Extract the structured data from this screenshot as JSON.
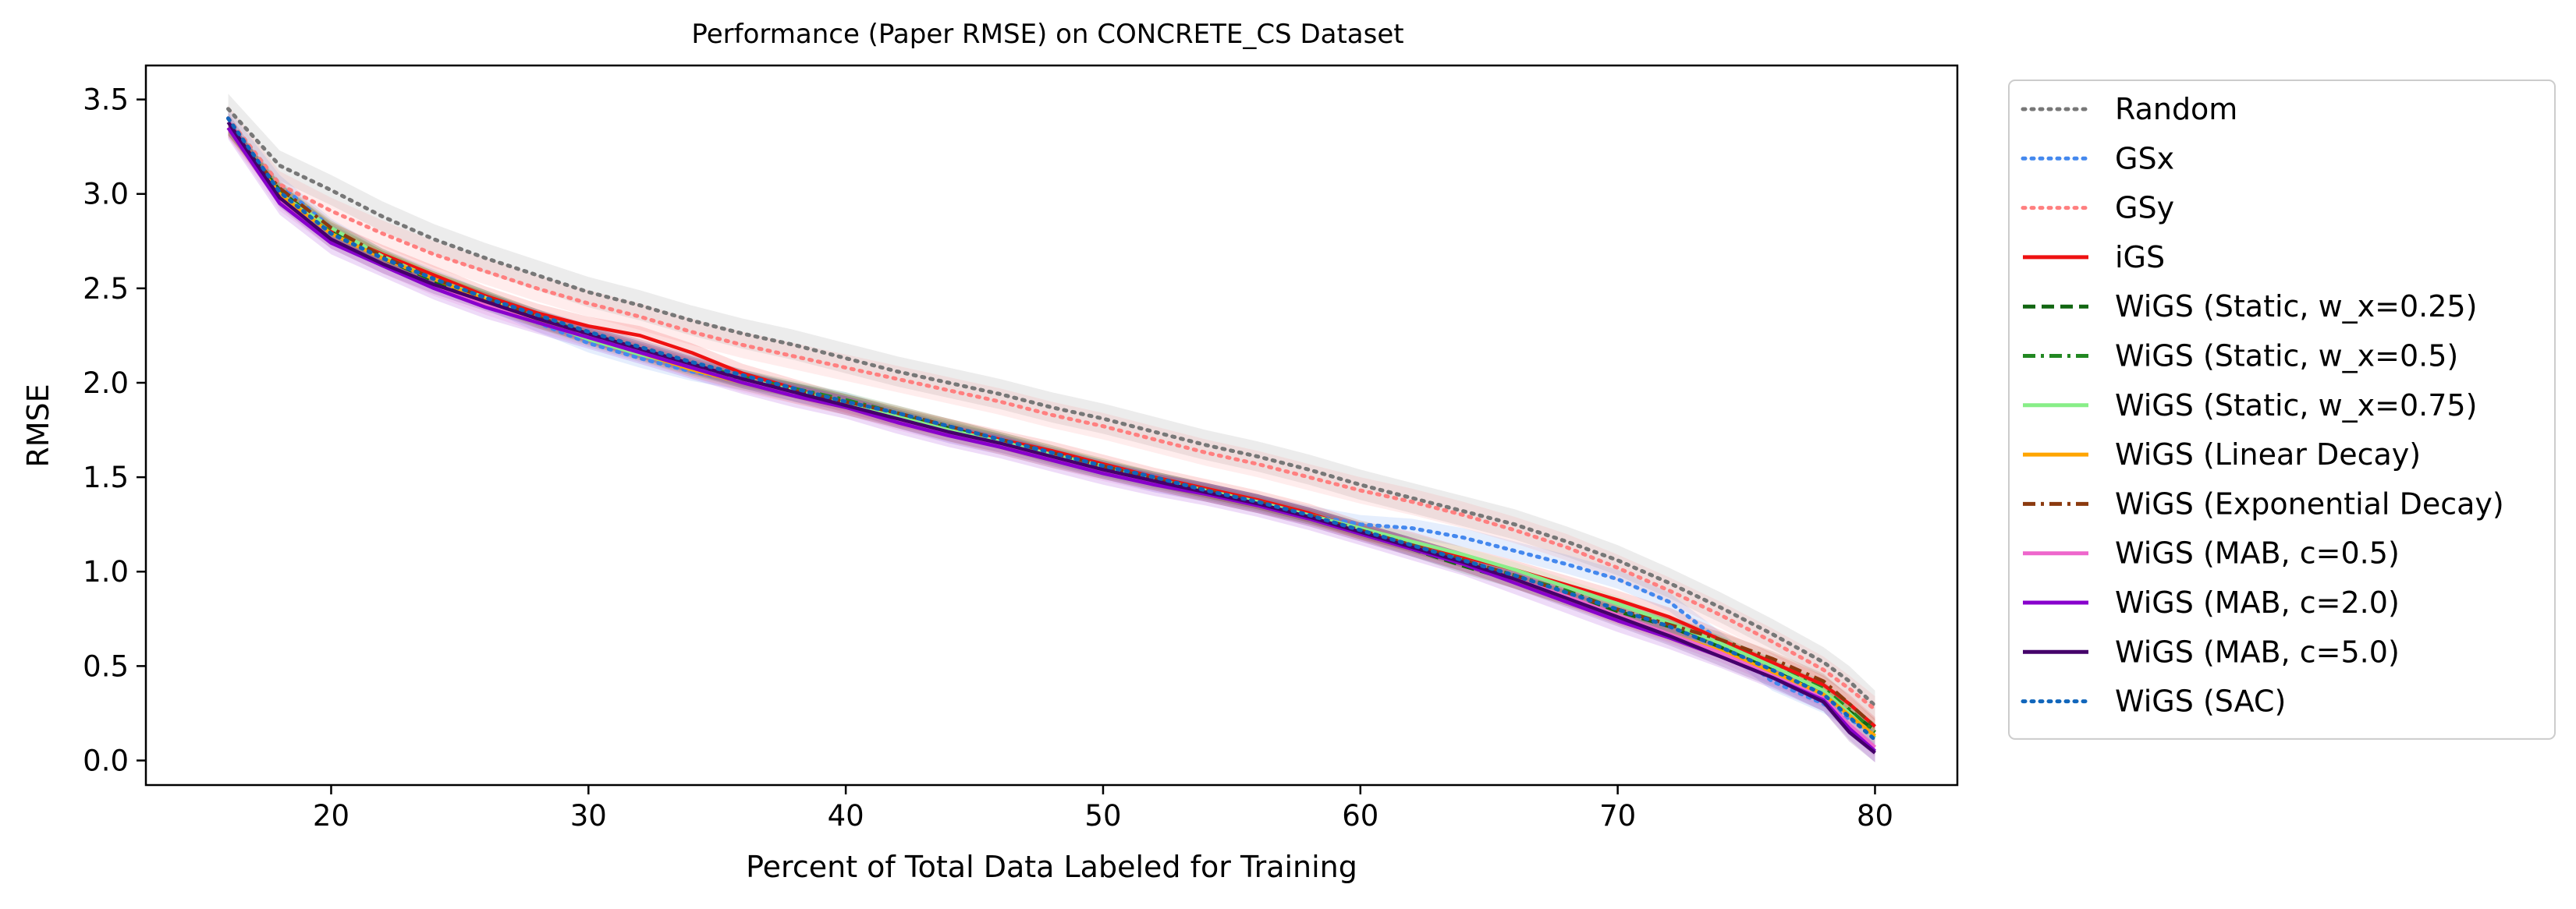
{
  "chart_data": {
    "type": "line",
    "title": "Performance (Paper RMSE) on CONCRETE_CS Dataset",
    "xlabel": "Percent of Total Data Labeled for Training",
    "ylabel": "RMSE",
    "xlim": [
      12.8,
      83.2
    ],
    "ylim": [
      -0.13,
      3.68
    ],
    "xticks": [
      20,
      30,
      40,
      50,
      60,
      70,
      80
    ],
    "yticks": [
      0.0,
      0.5,
      1.0,
      1.5,
      2.0,
      2.5,
      3.0,
      3.5
    ],
    "xtick_labels": [
      "20",
      "30",
      "40",
      "50",
      "60",
      "70",
      "80"
    ],
    "ytick_labels": [
      "0.0",
      "0.5",
      "1.0",
      "1.5",
      "2.0",
      "2.5",
      "3.0",
      "3.5"
    ],
    "grid": false,
    "legend_position": "outside-right",
    "x": [
      16,
      18,
      20,
      22,
      24,
      26,
      28,
      30,
      32,
      34,
      36,
      38,
      40,
      42,
      44,
      46,
      48,
      50,
      52,
      54,
      56,
      58,
      60,
      62,
      64,
      66,
      68,
      70,
      72,
      74,
      76,
      78,
      79,
      80
    ],
    "series": [
      {
        "name": "Random",
        "color": "#777777",
        "style": "dotted",
        "band": 0.08,
        "values": [
          3.45,
          3.15,
          3.02,
          2.88,
          2.76,
          2.66,
          2.57,
          2.48,
          2.41,
          2.33,
          2.26,
          2.2,
          2.13,
          2.06,
          2.0,
          1.94,
          1.87,
          1.81,
          1.74,
          1.67,
          1.61,
          1.54,
          1.46,
          1.39,
          1.32,
          1.25,
          1.16,
          1.06,
          0.94,
          0.81,
          0.67,
          0.52,
          0.42,
          0.29
        ]
      },
      {
        "name": "GSx",
        "color": "#4488ee",
        "style": "dotted",
        "band": 0.05,
        "values": [
          3.4,
          3.05,
          2.82,
          2.66,
          2.55,
          2.44,
          2.32,
          2.21,
          2.13,
          2.06,
          2.01,
          1.95,
          1.9,
          1.81,
          1.73,
          1.67,
          1.6,
          1.54,
          1.47,
          1.42,
          1.36,
          1.3,
          1.25,
          1.23,
          1.18,
          1.11,
          1.04,
          0.96,
          0.84,
          0.63,
          0.42,
          0.3,
          0.22,
          0.14
        ]
      },
      {
        "name": "GSy",
        "color": "#ff7f7f",
        "style": "dotted",
        "band": 0.07,
        "values": [
          3.4,
          3.05,
          2.91,
          2.79,
          2.68,
          2.59,
          2.5,
          2.42,
          2.35,
          2.27,
          2.2,
          2.14,
          2.08,
          2.02,
          1.96,
          1.9,
          1.83,
          1.77,
          1.7,
          1.63,
          1.57,
          1.5,
          1.43,
          1.37,
          1.3,
          1.22,
          1.13,
          1.02,
          0.9,
          0.77,
          0.63,
          0.48,
          0.38,
          0.27
        ]
      },
      {
        "name": "iGS",
        "color": "#ee1111",
        "style": "solid",
        "band": 0.05,
        "values": [
          3.35,
          3.0,
          2.8,
          2.68,
          2.57,
          2.46,
          2.37,
          2.3,
          2.25,
          2.16,
          2.05,
          1.97,
          1.89,
          1.82,
          1.76,
          1.7,
          1.64,
          1.57,
          1.5,
          1.44,
          1.38,
          1.31,
          1.22,
          1.16,
          1.08,
          1.01,
          0.93,
          0.85,
          0.76,
          0.64,
          0.52,
          0.4,
          0.3,
          0.18
        ]
      },
      {
        "name": "WiGS (Static, w_x=0.25)",
        "color": "#116611",
        "style": "dashed",
        "band": 0.04,
        "values": [
          3.35,
          3.02,
          2.8,
          2.66,
          2.54,
          2.44,
          2.34,
          2.24,
          2.16,
          2.08,
          2.01,
          1.96,
          1.9,
          1.83,
          1.76,
          1.69,
          1.61,
          1.54,
          1.48,
          1.42,
          1.36,
          1.29,
          1.21,
          1.12,
          1.03,
          0.95,
          0.86,
          0.79,
          0.71,
          0.6,
          0.48,
          0.36,
          0.26,
          0.16
        ]
      },
      {
        "name": "WiGS (Static, w_x=0.5)",
        "color": "#228822",
        "style": "dashdot",
        "band": 0.04,
        "values": [
          3.35,
          3.02,
          2.81,
          2.66,
          2.55,
          2.45,
          2.35,
          2.26,
          2.18,
          2.1,
          2.03,
          1.97,
          1.91,
          1.84,
          1.77,
          1.7,
          1.63,
          1.55,
          1.49,
          1.43,
          1.37,
          1.3,
          1.22,
          1.14,
          1.06,
          0.98,
          0.9,
          0.8,
          0.72,
          0.62,
          0.5,
          0.38,
          0.27,
          0.15
        ]
      },
      {
        "name": "WiGS (Static, w_x=0.75)",
        "color": "#88ee88",
        "style": "solid",
        "band": 0.04,
        "values": [
          3.35,
          3.0,
          2.82,
          2.67,
          2.55,
          2.45,
          2.33,
          2.23,
          2.15,
          2.08,
          2.02,
          1.96,
          1.9,
          1.82,
          1.75,
          1.69,
          1.62,
          1.56,
          1.49,
          1.43,
          1.37,
          1.3,
          1.23,
          1.16,
          1.09,
          1.01,
          0.92,
          0.83,
          0.73,
          0.62,
          0.5,
          0.37,
          0.25,
          0.12
        ]
      },
      {
        "name": "WiGS (Linear Decay)",
        "color": "#ffa500",
        "style": "solid",
        "band": 0.04,
        "values": [
          3.35,
          3.0,
          2.79,
          2.66,
          2.55,
          2.44,
          2.33,
          2.24,
          2.16,
          2.07,
          2.0,
          1.93,
          1.87,
          1.8,
          1.73,
          1.66,
          1.59,
          1.53,
          1.47,
          1.41,
          1.35,
          1.29,
          1.21,
          1.13,
          1.04,
          0.95,
          0.86,
          0.76,
          0.67,
          0.58,
          0.47,
          0.35,
          0.24,
          0.13
        ]
      },
      {
        "name": "WiGS (Exponential Decay)",
        "color": "#8b3a0f",
        "style": "dashdot",
        "band": 0.04,
        "values": [
          3.35,
          3.03,
          2.82,
          2.67,
          2.55,
          2.45,
          2.35,
          2.25,
          2.17,
          2.09,
          2.02,
          1.96,
          1.9,
          1.84,
          1.77,
          1.7,
          1.63,
          1.56,
          1.49,
          1.43,
          1.37,
          1.3,
          1.22,
          1.14,
          1.06,
          0.98,
          0.89,
          0.8,
          0.72,
          0.64,
          0.54,
          0.42,
          0.3,
          0.18
        ]
      },
      {
        "name": "WiGS (MAB, c=0.5)",
        "color": "#ee66cc",
        "style": "solid",
        "band": 0.05,
        "values": [
          3.35,
          2.96,
          2.76,
          2.63,
          2.51,
          2.41,
          2.32,
          2.24,
          2.16,
          2.08,
          2.0,
          1.94,
          1.88,
          1.8,
          1.73,
          1.67,
          1.6,
          1.53,
          1.47,
          1.42,
          1.36,
          1.29,
          1.21,
          1.13,
          1.05,
          0.96,
          0.87,
          0.77,
          0.67,
          0.57,
          0.45,
          0.33,
          0.19,
          0.07
        ]
      },
      {
        "name": "WiGS (MAB, c=2.0)",
        "color": "#8800cc",
        "style": "solid",
        "band": 0.06,
        "values": [
          3.35,
          2.95,
          2.74,
          2.62,
          2.5,
          2.4,
          2.32,
          2.24,
          2.16,
          2.08,
          2.0,
          1.93,
          1.87,
          1.79,
          1.72,
          1.66,
          1.59,
          1.52,
          1.46,
          1.41,
          1.35,
          1.28,
          1.2,
          1.12,
          1.04,
          0.94,
          0.84,
          0.74,
          0.65,
          0.55,
          0.44,
          0.32,
          0.17,
          0.05
        ]
      },
      {
        "name": "WiGS (MAB, c=5.0)",
        "color": "#44006a",
        "style": "solid",
        "band": 0.05,
        "values": [
          3.38,
          2.98,
          2.76,
          2.63,
          2.52,
          2.43,
          2.34,
          2.26,
          2.18,
          2.1,
          2.02,
          1.95,
          1.88,
          1.81,
          1.74,
          1.68,
          1.61,
          1.54,
          1.48,
          1.42,
          1.36,
          1.29,
          1.21,
          1.13,
          1.05,
          0.96,
          0.86,
          0.76,
          0.66,
          0.55,
          0.44,
          0.31,
          0.15,
          0.04
        ]
      },
      {
        "name": "WiGS (SAC)",
        "color": "#1166bb",
        "style": "dotted",
        "band": 0.0,
        "values": [
          3.4,
          3.01,
          2.79,
          2.66,
          2.55,
          2.45,
          2.36,
          2.27,
          2.19,
          2.11,
          2.04,
          1.97,
          1.9,
          1.84,
          1.77,
          1.7,
          1.63,
          1.56,
          1.5,
          1.43,
          1.37,
          1.3,
          1.22,
          1.14,
          1.06,
          0.98,
          0.89,
          0.8,
          0.71,
          0.6,
          0.48,
          0.35,
          0.23,
          0.11
        ]
      }
    ]
  }
}
